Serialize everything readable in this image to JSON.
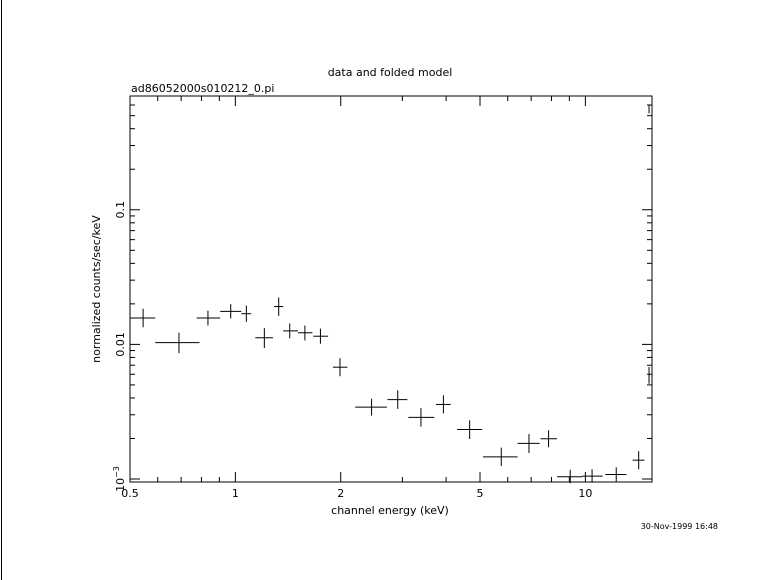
{
  "chart_data": {
    "type": "scatter",
    "title": "data and folded model",
    "subtitle": "ad86052000s010212_0.pi",
    "xlabel": "channel energy (keV)",
    "ylabel": "normalized counts/sec/keV",
    "footer": "30-Nov-1999 16:48",
    "xscale": "log",
    "yscale": "log",
    "xlim": [
      0.5,
      15.5
    ],
    "ylim": [
      0.00095,
      0.7
    ],
    "xticks": [
      {
        "value": 0.5,
        "label": "0.5"
      },
      {
        "value": 1,
        "label": "1"
      },
      {
        "value": 2,
        "label": "2"
      },
      {
        "value": 5,
        "label": "5"
      },
      {
        "value": 10,
        "label": "10"
      }
    ],
    "yticks": [
      {
        "value": 0.001,
        "label": "10",
        "sup": "−3"
      },
      {
        "value": 0.01,
        "label": "0.01",
        "sup": ""
      },
      {
        "value": 0.1,
        "label": "0.1",
        "sup": ""
      }
    ],
    "series": [
      {
        "points": [
          {
            "x": 0.545,
            "xlo": 0.5,
            "xhi": 0.59,
            "y": 0.0157,
            "ylo": 0.0134,
            "yhi": 0.0184
          },
          {
            "x": 0.69,
            "xlo": 0.59,
            "xhi": 0.79,
            "y": 0.0103,
            "ylo": 0.0086,
            "yhi": 0.0122
          },
          {
            "x": 0.835,
            "xlo": 0.775,
            "xhi": 0.905,
            "y": 0.0157,
            "ylo": 0.0138,
            "yhi": 0.0178
          },
          {
            "x": 0.97,
            "xlo": 0.905,
            "xhi": 1.04,
            "y": 0.0176,
            "ylo": 0.0156,
            "yhi": 0.0199
          },
          {
            "x": 1.075,
            "xlo": 1.04,
            "xhi": 1.11,
            "y": 0.0169,
            "ylo": 0.0147,
            "yhi": 0.0194
          },
          {
            "x": 1.21,
            "xlo": 1.14,
            "xhi": 1.28,
            "y": 0.0112,
            "ylo": 0.0094,
            "yhi": 0.0132
          },
          {
            "x": 1.33,
            "xlo": 1.29,
            "xhi": 1.37,
            "y": 0.0191,
            "ylo": 0.0163,
            "yhi": 0.0223
          },
          {
            "x": 1.43,
            "xlo": 1.37,
            "xhi": 1.51,
            "y": 0.0126,
            "ylo": 0.0111,
            "yhi": 0.0143
          },
          {
            "x": 1.58,
            "xlo": 1.51,
            "xhi": 1.66,
            "y": 0.0122,
            "ylo": 0.0107,
            "yhi": 0.0138
          },
          {
            "x": 1.75,
            "xlo": 1.67,
            "xhi": 1.84,
            "y": 0.0115,
            "ylo": 0.0101,
            "yhi": 0.0131
          },
          {
            "x": 1.99,
            "xlo": 1.9,
            "xhi": 2.09,
            "y": 0.00677,
            "ylo": 0.0058,
            "yhi": 0.0079
          },
          {
            "x": 2.45,
            "xlo": 2.2,
            "xhi": 2.71,
            "y": 0.00342,
            "ylo": 0.00296,
            "yhi": 0.00395
          },
          {
            "x": 2.91,
            "xlo": 2.72,
            "xhi": 3.1,
            "y": 0.00389,
            "ylo": 0.00332,
            "yhi": 0.00456
          },
          {
            "x": 3.39,
            "xlo": 3.12,
            "xhi": 3.7,
            "y": 0.00287,
            "ylo": 0.00245,
            "yhi": 0.00336
          },
          {
            "x": 3.93,
            "xlo": 3.74,
            "xhi": 4.12,
            "y": 0.00358,
            "ylo": 0.00307,
            "yhi": 0.00418
          },
          {
            "x": 4.67,
            "xlo": 4.3,
            "xhi": 5.07,
            "y": 0.00233,
            "ylo": 0.00198,
            "yhi": 0.00273
          },
          {
            "x": 5.75,
            "xlo": 5.1,
            "xhi": 6.4,
            "y": 0.00146,
            "ylo": 0.00125,
            "yhi": 0.00171
          },
          {
            "x": 6.9,
            "xlo": 6.4,
            "xhi": 7.4,
            "y": 0.00184,
            "ylo": 0.00156,
            "yhi": 0.00216
          },
          {
            "x": 7.85,
            "xlo": 7.45,
            "xhi": 8.3,
            "y": 0.00199,
            "ylo": 0.00172,
            "yhi": 0.0023
          },
          {
            "x": 9.05,
            "xlo": 8.3,
            "xhi": 9.8,
            "y": 0.00104,
            "ylo": 0.00093,
            "yhi": 0.00117
          },
          {
            "x": 10.45,
            "xlo": 9.8,
            "xhi": 11.2,
            "y": 0.00105,
            "ylo": 0.00094,
            "yhi": 0.00118
          },
          {
            "x": 12.25,
            "xlo": 11.4,
            "xhi": 13.1,
            "y": 0.00108,
            "ylo": 0.00096,
            "yhi": 0.00122
          },
          {
            "x": 14.2,
            "xlo": 13.65,
            "xhi": 14.75,
            "y": 0.00138,
            "ylo": 0.00118,
            "yhi": 0.00161
          },
          {
            "x": 15.2,
            "xlo": 15.15,
            "xhi": 15.25,
            "y": 0.0059,
            "ylo": 0.0051,
            "yhi": 0.0068
          },
          {
            "x": 15.2,
            "xlo": 15.15,
            "xhi": 15.25,
            "y": 0.56,
            "ylo": 0.52,
            "yhi": 0.6
          }
        ]
      }
    ]
  }
}
